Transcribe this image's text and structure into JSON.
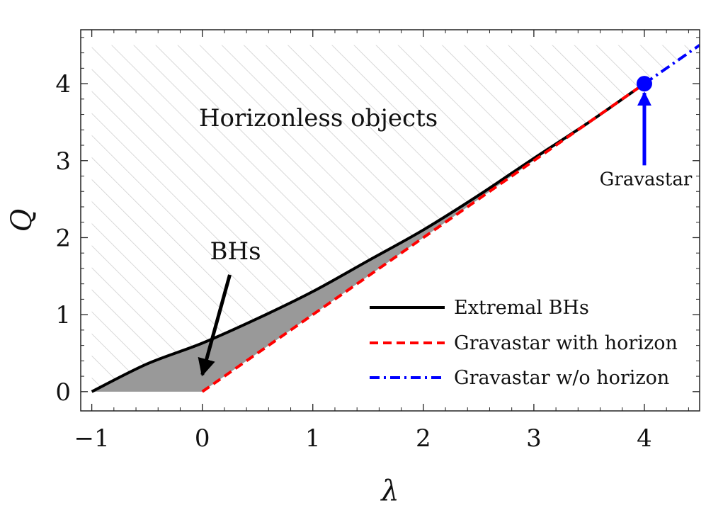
{
  "chart_data": {
    "type": "line",
    "title": "",
    "xlabel": "λ",
    "ylabel": "Q",
    "xlim": [
      -1.1,
      4.5
    ],
    "ylim": [
      -0.25,
      4.7
    ],
    "grid": false,
    "legend_position": "bottom-right",
    "x_ticks": [
      -1,
      0,
      1,
      2,
      3,
      4
    ],
    "x_tick_labels": [
      "−1",
      "0",
      "1",
      "2",
      "3",
      "4"
    ],
    "y_ticks": [
      0,
      1,
      2,
      3,
      4
    ],
    "y_tick_labels": [
      "0",
      "1",
      "2",
      "3",
      "4"
    ],
    "series": [
      {
        "name": "Extremal BHs",
        "style": "solid",
        "color": "#000000",
        "x": [
          -1.0,
          -0.5,
          0.0,
          0.5,
          1.0,
          1.5,
          2.0,
          2.5,
          3.0,
          3.5,
          4.0
        ],
        "y": [
          0.0,
          0.36,
          0.63,
          0.95,
          1.3,
          1.7,
          2.1,
          2.55,
          3.03,
          3.5,
          4.0
        ]
      },
      {
        "name": "Gravastar with horizon",
        "style": "dashed",
        "color": "#ff0000",
        "x": [
          0.0,
          4.0
        ],
        "y": [
          0.0,
          4.0
        ]
      },
      {
        "name": "Gravastar w/o horizon",
        "style": "dashdot",
        "color": "#0000ff",
        "x": [
          4.0,
          4.5
        ],
        "y": [
          4.0,
          4.5
        ]
      }
    ],
    "marker": {
      "x": 4.0,
      "y": 4.0,
      "color": "#0000ff"
    },
    "regions": [
      {
        "label": "Horizonless objects",
        "fill": "hatched"
      },
      {
        "label": "BHs",
        "fill": "#999999"
      }
    ],
    "annotations": [
      {
        "text": "Horizonless objects",
        "x": 1.05,
        "y": 3.45
      },
      {
        "text": "BHs",
        "x": 0.3,
        "y": 1.72,
        "arrow_to": [
          0.0,
          0.22
        ]
      },
      {
        "text": "Gravastar",
        "x": 4.0,
        "y": 2.7,
        "arrow_to": [
          4.0,
          3.88
        ]
      }
    ]
  },
  "colors": {
    "extremal": "#000000",
    "with_horizon": "#ff0000",
    "without_horizon": "#0000ff",
    "bh_fill": "#999999",
    "hatch": "#cfcfcf"
  }
}
